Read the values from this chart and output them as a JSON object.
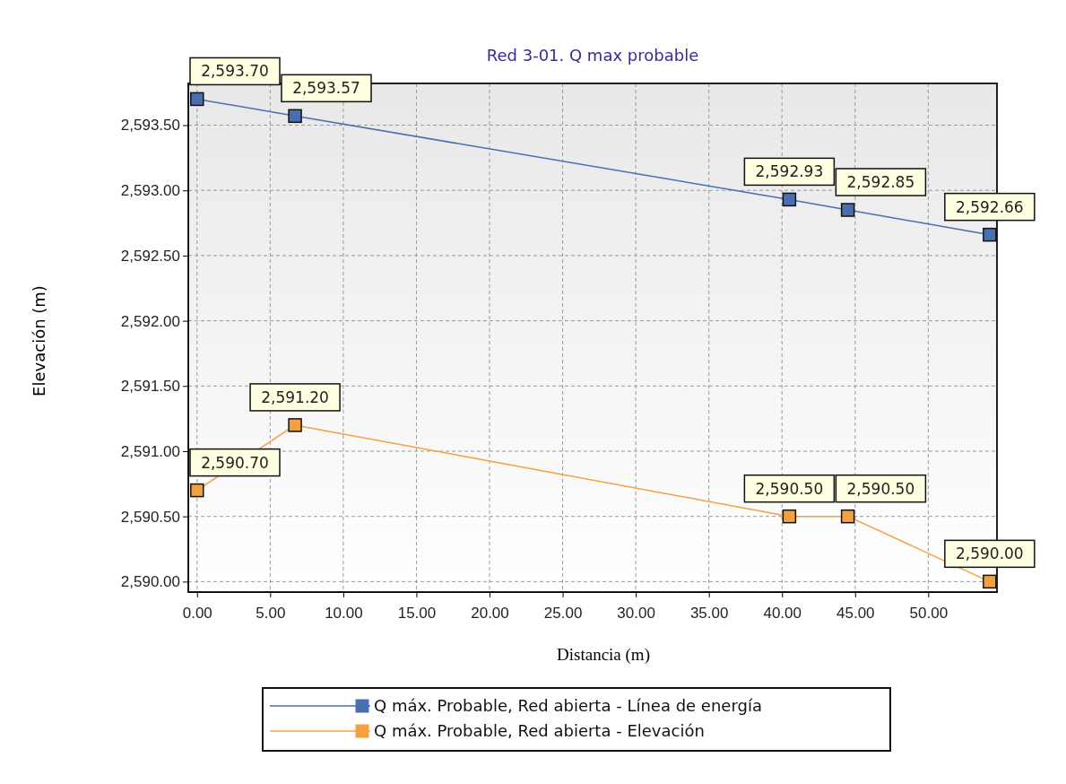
{
  "chart_data": {
    "type": "line",
    "title": "Red 3-01. Q max probable",
    "xlabel": "Distancia (m)",
    "ylabel": "Elevación (m)",
    "x": [
      0,
      6.7,
      40.5,
      44.5,
      54.2
    ],
    "series": [
      {
        "name": "Q máx. Probable, Red abierta - Línea de energía",
        "color": "#4a6fb0",
        "values": [
          2593.7,
          2593.57,
          2592.93,
          2592.85,
          2592.66
        ],
        "value_labels": [
          "2,593.70",
          "2,593.57",
          "2,592.93",
          "2,592.85",
          "2,592.66"
        ]
      },
      {
        "name": "Q máx. Probable, Red abierta - Elevación",
        "color": "#f5a040",
        "values": [
          2590.7,
          2591.2,
          2590.5,
          2590.5,
          2590.0
        ],
        "value_labels": [
          "2,590.70",
          "2,591.20",
          "2,590.50",
          "2,590.50",
          "2,590.00"
        ]
      }
    ],
    "xlim": [
      -0.6,
      54.7
    ],
    "ylim": [
      2589.92,
      2593.82
    ],
    "xticks": [
      {
        "value": 0,
        "label": "0.00"
      },
      {
        "value": 5,
        "label": "5.00"
      },
      {
        "value": 10,
        "label": "10.00"
      },
      {
        "value": 15,
        "label": "15.00"
      },
      {
        "value": 20,
        "label": "20.00"
      },
      {
        "value": 25,
        "label": "25.00"
      },
      {
        "value": 30,
        "label": "30.00"
      },
      {
        "value": 35,
        "label": "35.00"
      },
      {
        "value": 40,
        "label": "40.00"
      },
      {
        "value": 45,
        "label": "45.00"
      },
      {
        "value": 50,
        "label": "50.00"
      }
    ],
    "yticks": [
      {
        "value": 2590,
        "label": "2,590.00"
      },
      {
        "value": 2590.5,
        "label": "2,590.50"
      },
      {
        "value": 2591,
        "label": "2,591.00"
      },
      {
        "value": 2591.5,
        "label": "2,591.50"
      },
      {
        "value": 2592,
        "label": "2,592.00"
      },
      {
        "value": 2592.5,
        "label": "2,592.50"
      },
      {
        "value": 2593,
        "label": "2,593.00"
      },
      {
        "value": 2593.5,
        "label": "2,593.50"
      }
    ],
    "grid": true,
    "legend": "bottom",
    "marker": "square",
    "line_style": "solid"
  }
}
